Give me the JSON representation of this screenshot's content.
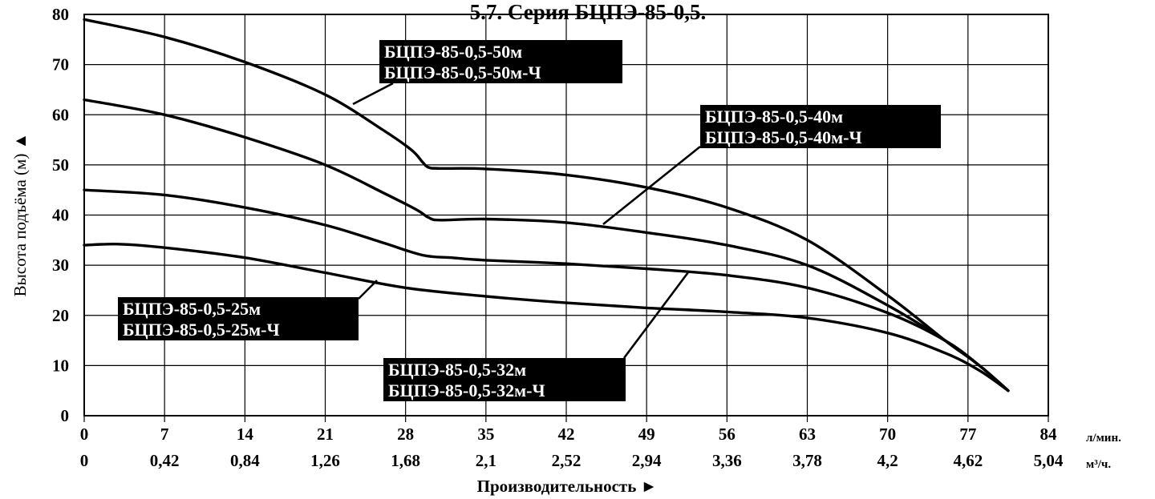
{
  "page_title": "5.7. Серия БЦПЭ-85-0,5.",
  "chart_data": {
    "type": "line",
    "ylabel": "Высота подъёма (м) ▲",
    "xlabel": "Производительность ►",
    "ylim": [
      0,
      80
    ],
    "yticks": [
      "0",
      "10",
      "20",
      "30",
      "40",
      "50",
      "60",
      "70",
      "80"
    ],
    "xlim": [
      0,
      84
    ],
    "x_unit": "л/мин.",
    "xticks": [
      "0",
      "7",
      "14",
      "21",
      "28",
      "35",
      "42",
      "49",
      "56",
      "63",
      "70",
      "77",
      "84"
    ],
    "x2_unit": "м³/ч.",
    "x2ticks": [
      "0",
      "0,42",
      "0,84",
      "1,26",
      "1,68",
      "2,1",
      "2,52",
      "2,94",
      "3,36",
      "3,78",
      "4,2",
      "4,62",
      "5,04"
    ],
    "grid": true,
    "series": [
      {
        "name": "БЦПЭ-85-0,5-50м",
        "name2": "БЦПЭ-85-0,5-50м-Ч",
        "x": [
          0,
          7,
          14,
          21,
          26,
          28.5,
          29.5,
          30,
          31,
          35,
          42,
          49,
          56,
          63,
          70,
          75,
          78,
          80.5
        ],
        "y": [
          79,
          75.5,
          70.5,
          64,
          57,
          53,
          50.5,
          49.5,
          49.3,
          49.2,
          48,
          45.5,
          41.5,
          35,
          24,
          15,
          10,
          5
        ]
      },
      {
        "name": "БЦПЭ-85-0,5-40м",
        "name2": "БЦПЭ-85-0,5-40м-Ч",
        "x": [
          0,
          7,
          14,
          21,
          26,
          29,
          30,
          31,
          35,
          42,
          49,
          56,
          63,
          70,
          75,
          78,
          80.5
        ],
        "y": [
          63,
          60,
          55.5,
          50,
          44.5,
          41,
          39.5,
          39,
          39.2,
          38.5,
          36.5,
          34,
          30,
          22,
          15,
          10,
          5
        ]
      },
      {
        "name": "БЦПЭ-85-0,5-32м",
        "name2": "БЦПЭ-85-0,5-32м-Ч",
        "x": [
          0,
          7,
          14,
          21,
          26,
          29.5,
          32,
          35,
          42,
          49,
          56,
          63,
          70,
          75,
          78,
          80.5
        ],
        "y": [
          45,
          44,
          41.5,
          38,
          34.5,
          32,
          31.5,
          31,
          30.3,
          29.3,
          28,
          25.5,
          20.5,
          15,
          10,
          5
        ]
      },
      {
        "name": "БЦПЭ-85-0,5-25м",
        "name2": "БЦПЭ-85-0,5-25м-Ч",
        "x": [
          0,
          3,
          7,
          14,
          21,
          28,
          35,
          42,
          49,
          56,
          63,
          70,
          75,
          78,
          80.5
        ],
        "y": [
          34,
          34.2,
          33.5,
          31.5,
          28.5,
          25.5,
          23.8,
          22.5,
          21.5,
          20.7,
          19.5,
          16.5,
          12.5,
          9,
          5
        ]
      }
    ]
  }
}
